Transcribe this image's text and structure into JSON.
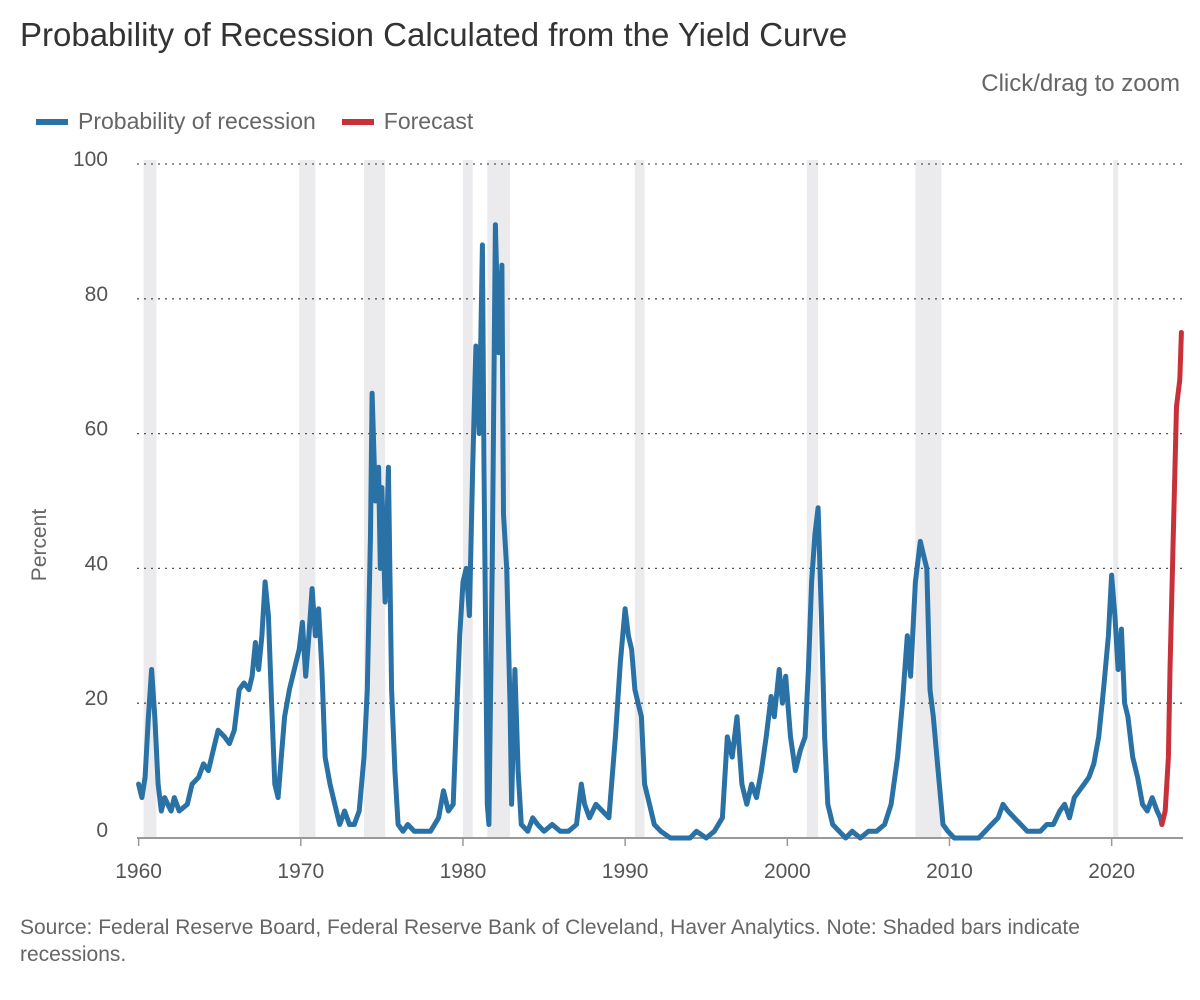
{
  "header": {
    "title": "Probability of Recession Calculated from the Yield Curve",
    "zoom_hint": "Click/drag to zoom"
  },
  "legend": {
    "items": [
      {
        "label": "Probability of recession",
        "color": "#2a71a5"
      },
      {
        "label": "Forecast",
        "color": "#c8313a"
      }
    ]
  },
  "footer": {
    "source": "Source: Federal Reserve Board, Federal Reserve Bank of Cleveland, Haver Analytics. Note: Shaded bars indicate recessions."
  },
  "chart_data": {
    "type": "line",
    "ylabel": "Percent",
    "xlabel": "",
    "xlim": [
      1959.9,
      2024.4
    ],
    "ylim": [
      0,
      100
    ],
    "xticks": [
      1960,
      1970,
      1980,
      1990,
      2000,
      2010,
      2020
    ],
    "yticks": [
      0,
      20,
      40,
      60,
      80,
      100
    ],
    "grid": "horizontal dotted",
    "legend_position": "top-left",
    "recessions": [
      [
        1960.3,
        1961.1
      ],
      [
        1969.9,
        1970.9
      ],
      [
        1973.9,
        1975.2
      ],
      [
        1980.0,
        1980.6
      ],
      [
        1981.5,
        1982.9
      ],
      [
        1990.6,
        1991.2
      ],
      [
        2001.2,
        2001.9
      ],
      [
        2007.9,
        2009.5
      ],
      [
        2020.1,
        2020.4
      ]
    ],
    "series": [
      {
        "name": "Probability of recession",
        "color": "#2a71a5",
        "points": [
          [
            1960.0,
            8
          ],
          [
            1960.2,
            6
          ],
          [
            1960.4,
            9
          ],
          [
            1960.6,
            18
          ],
          [
            1960.8,
            25
          ],
          [
            1961.0,
            18
          ],
          [
            1961.2,
            8
          ],
          [
            1961.4,
            4
          ],
          [
            1961.6,
            6
          ],
          [
            1961.8,
            5
          ],
          [
            1962.0,
            4
          ],
          [
            1962.2,
            6
          ],
          [
            1962.5,
            4
          ],
          [
            1963.0,
            5
          ],
          [
            1963.3,
            8
          ],
          [
            1963.7,
            9
          ],
          [
            1964.0,
            11
          ],
          [
            1964.3,
            10
          ],
          [
            1964.6,
            13
          ],
          [
            1964.9,
            16
          ],
          [
            1965.3,
            15
          ],
          [
            1965.6,
            14
          ],
          [
            1965.9,
            16
          ],
          [
            1966.2,
            22
          ],
          [
            1966.5,
            23
          ],
          [
            1966.8,
            22
          ],
          [
            1967.0,
            24
          ],
          [
            1967.2,
            29
          ],
          [
            1967.4,
            25
          ],
          [
            1967.6,
            30
          ],
          [
            1967.8,
            38
          ],
          [
            1968.0,
            33
          ],
          [
            1968.2,
            20
          ],
          [
            1968.4,
            8
          ],
          [
            1968.6,
            6
          ],
          [
            1968.8,
            12
          ],
          [
            1969.0,
            18
          ],
          [
            1969.3,
            22
          ],
          [
            1969.6,
            25
          ],
          [
            1969.9,
            28
          ],
          [
            1970.1,
            32
          ],
          [
            1970.3,
            24
          ],
          [
            1970.5,
            30
          ],
          [
            1970.7,
            37
          ],
          [
            1970.9,
            30
          ],
          [
            1971.1,
            34
          ],
          [
            1971.3,
            25
          ],
          [
            1971.5,
            12
          ],
          [
            1971.8,
            8
          ],
          [
            1972.1,
            5
          ],
          [
            1972.4,
            2
          ],
          [
            1972.7,
            4
          ],
          [
            1973.0,
            2
          ],
          [
            1973.3,
            2
          ],
          [
            1973.6,
            4
          ],
          [
            1973.9,
            12
          ],
          [
            1974.1,
            22
          ],
          [
            1974.3,
            45
          ],
          [
            1974.4,
            66
          ],
          [
            1974.6,
            50
          ],
          [
            1974.8,
            55
          ],
          [
            1974.9,
            40
          ],
          [
            1975.0,
            52
          ],
          [
            1975.2,
            35
          ],
          [
            1975.4,
            55
          ],
          [
            1975.6,
            22
          ],
          [
            1975.8,
            10
          ],
          [
            1976.0,
            2
          ],
          [
            1976.3,
            1
          ],
          [
            1976.6,
            2
          ],
          [
            1977.0,
            1
          ],
          [
            1977.5,
            1
          ],
          [
            1978.0,
            1
          ],
          [
            1978.5,
            3
          ],
          [
            1978.8,
            7
          ],
          [
            1979.1,
            4
          ],
          [
            1979.4,
            5
          ],
          [
            1979.6,
            18
          ],
          [
            1979.8,
            30
          ],
          [
            1980.0,
            38
          ],
          [
            1980.2,
            40
          ],
          [
            1980.4,
            33
          ],
          [
            1980.6,
            55
          ],
          [
            1980.8,
            73
          ],
          [
            1981.0,
            60
          ],
          [
            1981.2,
            88
          ],
          [
            1981.3,
            55
          ],
          [
            1981.5,
            5
          ],
          [
            1981.6,
            2
          ],
          [
            1981.8,
            40
          ],
          [
            1982.0,
            91
          ],
          [
            1982.2,
            72
          ],
          [
            1982.4,
            85
          ],
          [
            1982.5,
            48
          ],
          [
            1982.7,
            40
          ],
          [
            1982.9,
            20
          ],
          [
            1983.0,
            5
          ],
          [
            1983.2,
            25
          ],
          [
            1983.4,
            10
          ],
          [
            1983.6,
            2
          ],
          [
            1984.0,
            1
          ],
          [
            1984.3,
            3
          ],
          [
            1984.6,
            2
          ],
          [
            1985.0,
            1
          ],
          [
            1985.5,
            2
          ],
          [
            1986.0,
            1
          ],
          [
            1986.5,
            1
          ],
          [
            1987.0,
            2
          ],
          [
            1987.3,
            8
          ],
          [
            1987.5,
            5
          ],
          [
            1987.8,
            3
          ],
          [
            1988.2,
            5
          ],
          [
            1988.6,
            4
          ],
          [
            1989.0,
            3
          ],
          [
            1989.4,
            15
          ],
          [
            1989.7,
            26
          ],
          [
            1990.0,
            34
          ],
          [
            1990.2,
            30
          ],
          [
            1990.4,
            28
          ],
          [
            1990.6,
            22
          ],
          [
            1990.8,
            20
          ],
          [
            1991.0,
            18
          ],
          [
            1991.2,
            8
          ],
          [
            1991.5,
            5
          ],
          [
            1991.8,
            2
          ],
          [
            1992.2,
            1
          ],
          [
            1992.8,
            0
          ],
          [
            1993.5,
            0
          ],
          [
            1994.0,
            0
          ],
          [
            1994.4,
            1
          ],
          [
            1995.0,
            0
          ],
          [
            1995.5,
            1
          ],
          [
            1996.0,
            3
          ],
          [
            1996.3,
            15
          ],
          [
            1996.6,
            12
          ],
          [
            1996.9,
            18
          ],
          [
            1997.2,
            8
          ],
          [
            1997.5,
            5
          ],
          [
            1997.8,
            8
          ],
          [
            1998.1,
            6
          ],
          [
            1998.4,
            10
          ],
          [
            1998.7,
            15
          ],
          [
            1999.0,
            21
          ],
          [
            1999.2,
            18
          ],
          [
            1999.5,
            25
          ],
          [
            1999.7,
            20
          ],
          [
            1999.9,
            24
          ],
          [
            2000.2,
            15
          ],
          [
            2000.5,
            10
          ],
          [
            2000.8,
            13
          ],
          [
            2001.1,
            15
          ],
          [
            2001.3,
            25
          ],
          [
            2001.5,
            38
          ],
          [
            2001.7,
            45
          ],
          [
            2001.9,
            49
          ],
          [
            2002.1,
            33
          ],
          [
            2002.3,
            15
          ],
          [
            2002.5,
            5
          ],
          [
            2002.8,
            2
          ],
          [
            2003.2,
            1
          ],
          [
            2003.6,
            0
          ],
          [
            2004.0,
            1
          ],
          [
            2004.5,
            0
          ],
          [
            2005.0,
            1
          ],
          [
            2005.5,
            1
          ],
          [
            2006.0,
            2
          ],
          [
            2006.4,
            5
          ],
          [
            2006.8,
            12
          ],
          [
            2007.1,
            20
          ],
          [
            2007.4,
            30
          ],
          [
            2007.6,
            24
          ],
          [
            2007.9,
            38
          ],
          [
            2008.2,
            44
          ],
          [
            2008.4,
            42
          ],
          [
            2008.6,
            40
          ],
          [
            2008.8,
            22
          ],
          [
            2009.0,
            18
          ],
          [
            2009.3,
            10
          ],
          [
            2009.6,
            2
          ],
          [
            2009.9,
            1
          ],
          [
            2010.3,
            0
          ],
          [
            2010.8,
            0
          ],
          [
            2011.3,
            0
          ],
          [
            2011.8,
            0
          ],
          [
            2012.2,
            1
          ],
          [
            2012.6,
            2
          ],
          [
            2013.0,
            3
          ],
          [
            2013.3,
            5
          ],
          [
            2013.6,
            4
          ],
          [
            2014.0,
            3
          ],
          [
            2014.4,
            2
          ],
          [
            2014.8,
            1
          ],
          [
            2015.2,
            1
          ],
          [
            2015.6,
            1
          ],
          [
            2016.0,
            2
          ],
          [
            2016.4,
            2
          ],
          [
            2016.8,
            4
          ],
          [
            2017.1,
            5
          ],
          [
            2017.4,
            3
          ],
          [
            2017.7,
            6
          ],
          [
            2018.0,
            7
          ],
          [
            2018.3,
            8
          ],
          [
            2018.6,
            9
          ],
          [
            2018.9,
            11
          ],
          [
            2019.2,
            15
          ],
          [
            2019.5,
            22
          ],
          [
            2019.8,
            30
          ],
          [
            2020.0,
            39
          ],
          [
            2020.2,
            33
          ],
          [
            2020.4,
            25
          ],
          [
            2020.6,
            31
          ],
          [
            2020.8,
            20
          ],
          [
            2021.0,
            18
          ],
          [
            2021.3,
            12
          ],
          [
            2021.6,
            9
          ],
          [
            2021.9,
            5
          ],
          [
            2022.2,
            4
          ],
          [
            2022.5,
            6
          ],
          [
            2022.8,
            4
          ],
          [
            2023.0,
            3
          ],
          [
            2023.1,
            2
          ]
        ]
      },
      {
        "name": "Forecast",
        "color": "#c8313a",
        "points": [
          [
            2023.1,
            2
          ],
          [
            2023.3,
            4
          ],
          [
            2023.5,
            12
          ],
          [
            2023.6,
            25
          ],
          [
            2023.8,
            45
          ],
          [
            2024.0,
            64
          ],
          [
            2024.2,
            68
          ],
          [
            2024.3,
            75
          ]
        ]
      }
    ]
  }
}
